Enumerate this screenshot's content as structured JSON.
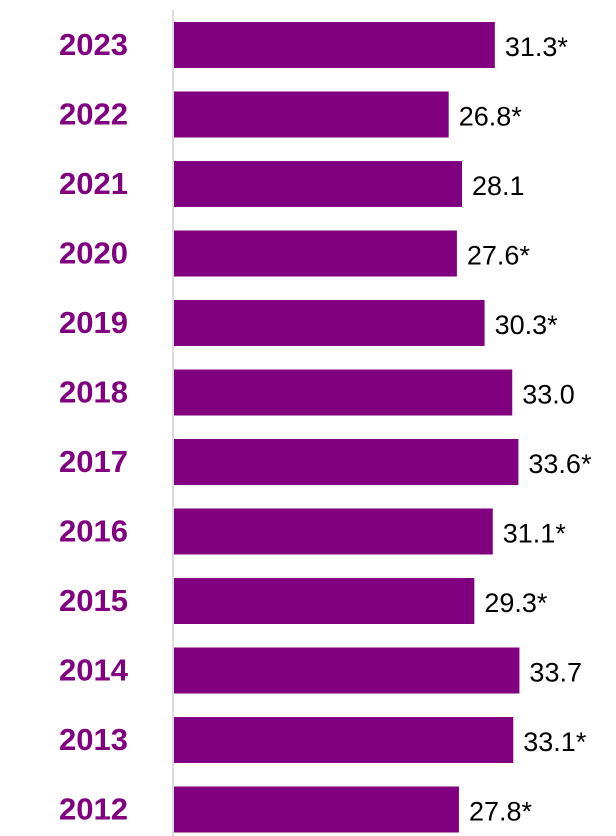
{
  "chart_data": {
    "type": "bar",
    "orientation": "horizontal",
    "categories": [
      "2023",
      "2022",
      "2021",
      "2020",
      "2019",
      "2018",
      "2017",
      "2016",
      "2015",
      "2014",
      "2013",
      "2012"
    ],
    "values": [
      31.3,
      26.8,
      28.1,
      27.6,
      30.3,
      33.0,
      33.6,
      31.1,
      29.3,
      33.7,
      33.1,
      27.8
    ],
    "value_labels": [
      "31.3*",
      "26.8*",
      "28.1",
      "27.6*",
      "30.3*",
      "33.0",
      "33.6*",
      "31.1*",
      "29.3*",
      "33.7",
      "33.1*",
      "27.8*"
    ],
    "color": "#800080",
    "xlim": [
      0,
      40
    ]
  }
}
